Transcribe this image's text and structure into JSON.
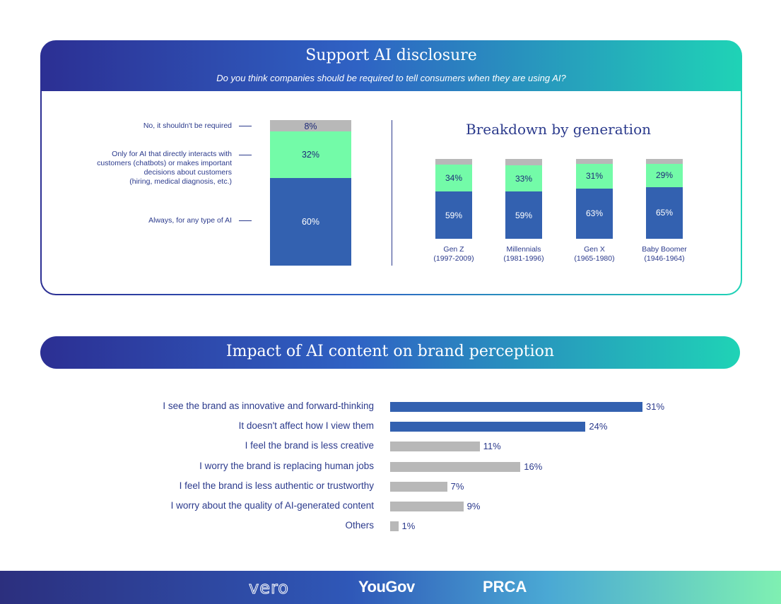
{
  "panel1": {
    "title": "Support AI disclosure",
    "subtitle": "Do you think companies should be required to tell consumers when they are using AI?"
  },
  "panel2": {
    "title": "Impact of AI content on brand perception"
  },
  "footer": {
    "logos": [
      "vero",
      "YouGov",
      "PRCA"
    ]
  },
  "colors": {
    "blue": "#3361b0",
    "green": "#73fba8",
    "gray": "#b8b8b8",
    "text": "#2b3a8c"
  },
  "chart_data": [
    {
      "type": "bar",
      "stacked": true,
      "title": "",
      "categories": [
        "All"
      ],
      "series": [
        {
          "name": "Always, for any type of AI",
          "values": [
            60
          ],
          "labels": [
            "60%"
          ],
          "color": "#3361b0"
        },
        {
          "name": "Only for AI that directly interacts with customers (chatbots) or makes important decisions about customers (hiring, medical diagnosis, etc.)",
          "values": [
            32
          ],
          "labels": [
            "32%"
          ],
          "color": "#73fba8"
        },
        {
          "name": "No, it shouldn't be required",
          "values": [
            8
          ],
          "labels": [
            "8%"
          ],
          "color": "#b8b8b8"
        }
      ],
      "label_lines": [
        [
          "No, it shouldn't be required"
        ],
        [
          "Only for AI that directly interacts with",
          "customers (chatbots) or makes important",
          "decisions about customers",
          "(hiring, medical diagnosis, etc.)"
        ],
        [
          "Always, for any type of AI"
        ]
      ]
    },
    {
      "type": "bar",
      "stacked": true,
      "title": "Breakdown by generation",
      "categories": [
        {
          "name": "Gen Z",
          "years": "(1997-2009)"
        },
        {
          "name": "Millennials",
          "years": "(1981-1996)"
        },
        {
          "name": "Gen X",
          "years": "(1965-1980)"
        },
        {
          "name": "Baby Boomer",
          "years": "(1946-1964)"
        }
      ],
      "series": [
        {
          "name": "",
          "values": [
            59,
            59,
            63,
            65
          ],
          "labels": [
            "59%",
            "59%",
            "63%",
            "65%"
          ],
          "color": "#3361b0"
        },
        {
          "name": "",
          "values": [
            34,
            33,
            31,
            29
          ],
          "labels": [
            "34%",
            "33%",
            "31%",
            "29%"
          ],
          "color": "#73fba8"
        },
        {
          "name": "",
          "values": [
            7,
            8,
            6,
            6
          ],
          "color": "#b8b8b8"
        }
      ]
    },
    {
      "type": "bar",
      "orientation": "horizontal",
      "title": "",
      "categories": [
        "I see the brand as innovative and forward-thinking",
        "It doesn't affect how I view them",
        "I feel the brand is less creative",
        "I worry the brand is replacing human jobs",
        "I feel the brand is less authentic or trustworthy",
        "I worry about the quality of AI-generated content",
        "Others"
      ],
      "values": [
        31,
        24,
        11,
        16,
        7,
        9,
        1
      ],
      "labels": [
        "31%",
        "24%",
        "11%",
        "16%",
        "7%",
        "9%",
        "1%"
      ],
      "colors": [
        "#3361b0",
        "#3361b0",
        "#b8b8b8",
        "#b8b8b8",
        "#b8b8b8",
        "#b8b8b8",
        "#b8b8b8"
      ],
      "xlim": [
        0,
        31
      ]
    }
  ]
}
